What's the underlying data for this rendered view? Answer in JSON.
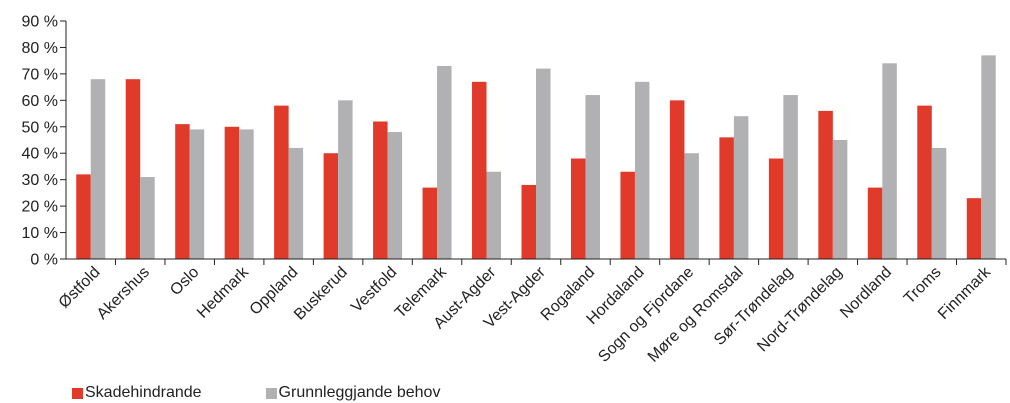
{
  "chart_data": {
    "type": "bar",
    "categories": [
      "Østfold",
      "Akershus",
      "Oslo",
      "Hedmark",
      "Oppland",
      "Buskerud",
      "Vestfold",
      "Telemark",
      "Aust-Agder",
      "Vest-Agder",
      "Rogaland",
      "Hordaland",
      "Sogn og Fjordane",
      "Møre og Romsdal",
      "Sør-Trøndelag",
      "Nord-Trøndelag",
      "Nordland",
      "Troms",
      "Finnmark"
    ],
    "series": [
      {
        "name": "Skadehindrande",
        "color": "#e03a2b",
        "values": [
          32,
          68,
          51,
          50,
          58,
          40,
          52,
          27,
          67,
          28,
          38,
          33,
          60,
          46,
          38,
          56,
          27,
          58,
          23
        ]
      },
      {
        "name": "Grunnleggjande behov",
        "color": "#b1b1b4",
        "values": [
          68,
          31,
          49,
          49,
          42,
          60,
          48,
          73,
          33,
          72,
          62,
          67,
          40,
          54,
          62,
          45,
          74,
          42,
          77
        ]
      }
    ],
    "yticks": [
      "0 %",
      "10 %",
      "20 %",
      "30 %",
      "40 %",
      "50 %",
      "60 %",
      "70 %",
      "80 %",
      "90 %"
    ],
    "ylim": [
      0,
      90
    ],
    "grid": false,
    "legend": "bottom-left"
  }
}
